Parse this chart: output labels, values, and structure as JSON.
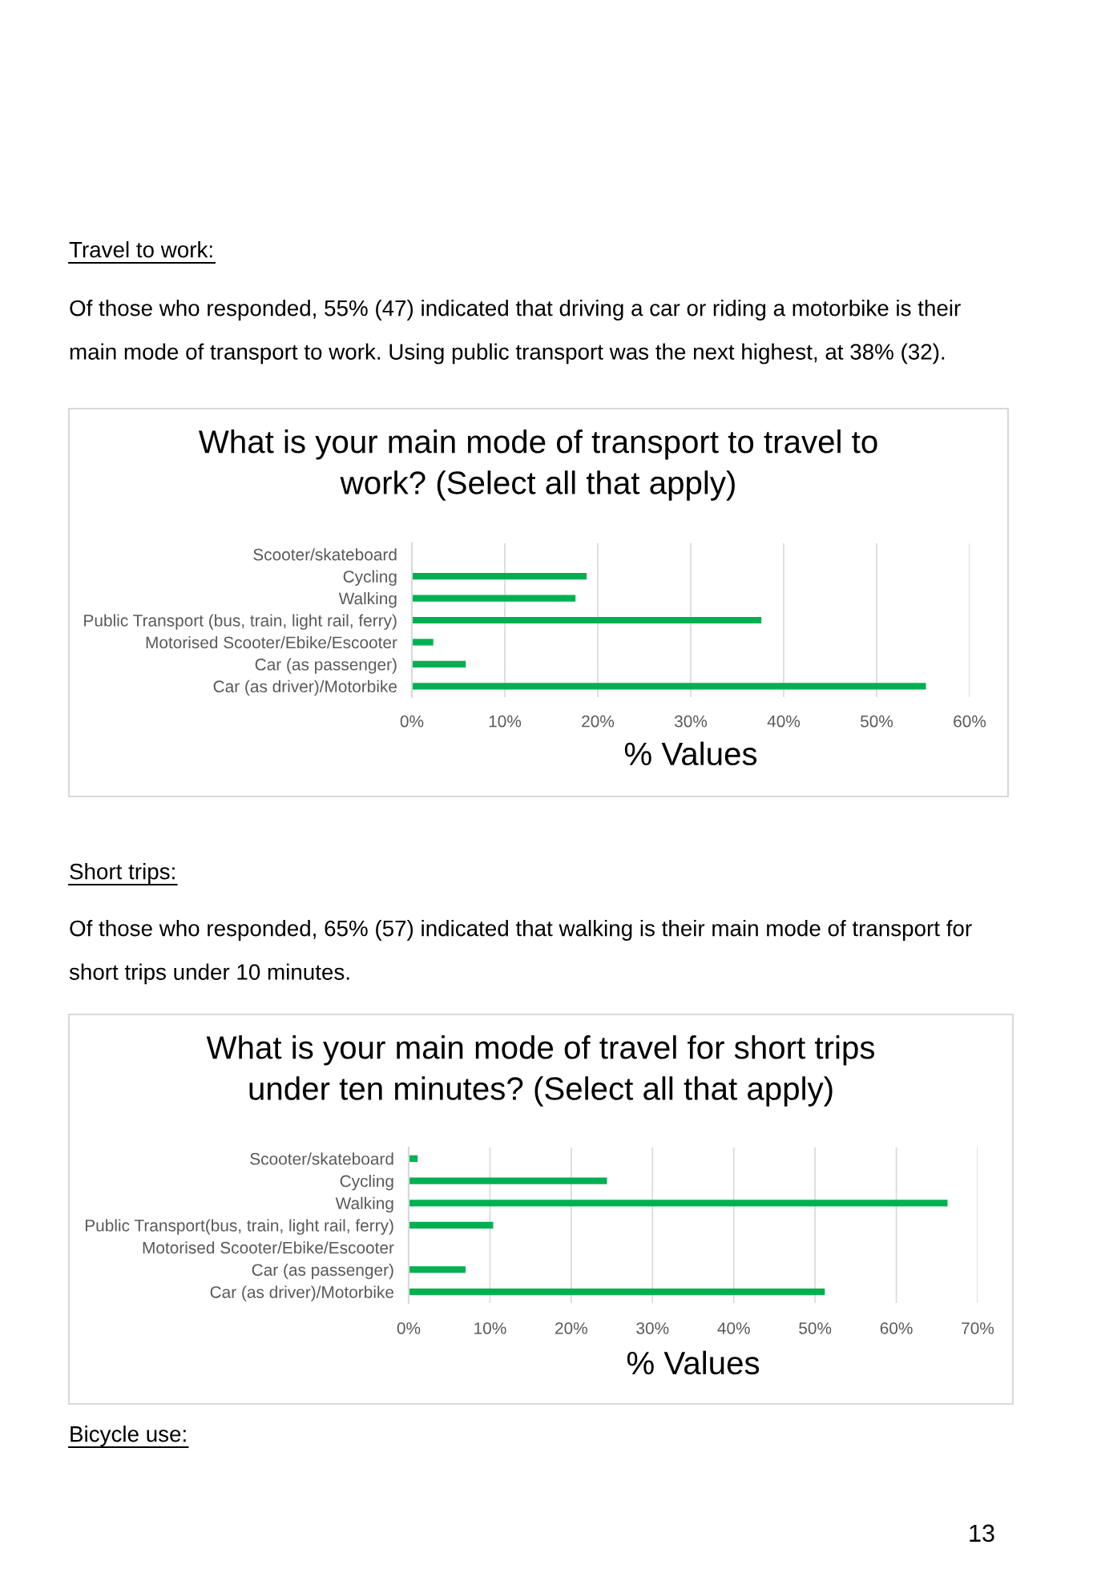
{
  "chart_data": [
    {
      "type": "bar",
      "orientation": "horizontal",
      "title": "What is your main mode of transport to travel to work? (Select all that apply)",
      "xlabel": "% Values",
      "categories": [
        "Scooter/skateboard",
        "Cycling",
        "Walking",
        "Public Transport (bus, train, light rail, ferry)",
        "Motorised Scooter/Ebike/Escooter",
        "Car (as passenger)",
        "Car (as driver)/Motorbike"
      ],
      "values": [
        0,
        18.8,
        17.6,
        37.6,
        2.3,
        5.8,
        55.3
      ],
      "color": "#00b050",
      "xlim": [
        0,
        60
      ],
      "xticks": [
        {
          "value": 0,
          "label": "0%"
        },
        {
          "value": 10,
          "label": "10%"
        },
        {
          "value": 20,
          "label": "20%"
        },
        {
          "value": 30,
          "label": "30%"
        },
        {
          "value": 40,
          "label": "40%"
        },
        {
          "value": 50,
          "label": "50%"
        },
        {
          "value": 60,
          "label": "60%"
        }
      ],
      "grid": "x",
      "annotations": [
        "Travel to work:",
        "Of those who responded, 55% (47) indicated that driving a car or riding a motorbike is their main mode of transport to work. Using public transport was the next highest, at 38% (32)."
      ]
    },
    {
      "type": "bar",
      "orientation": "horizontal",
      "title": "What is your main mode of travel for short trips under ten minutes? (Select all that apply)",
      "xlabel": "% Values",
      "categories": [
        "Scooter/skateboard",
        "Cycling",
        "Walking",
        "Public Transport(bus, train, light rail, ferry)",
        "Motorised Scooter/Ebike/Escooter",
        "Car (as passenger)",
        "Car (as driver)/Motorbike"
      ],
      "values": [
        1.1,
        24.4,
        66.3,
        10.4,
        0,
        7.0,
        51.2
      ],
      "color": "#00b050",
      "xlim": [
        0,
        70
      ],
      "xticks": [
        {
          "value": 0,
          "label": "0%"
        },
        {
          "value": 10,
          "label": "10%"
        },
        {
          "value": 20,
          "label": "20%"
        },
        {
          "value": 30,
          "label": "30%"
        },
        {
          "value": 40,
          "label": "40%"
        },
        {
          "value": 50,
          "label": "50%"
        },
        {
          "value": 60,
          "label": "60%"
        },
        {
          "value": 70,
          "label": "70%"
        }
      ],
      "grid": "x",
      "annotations": [
        "Short trips:",
        "Of those who responded, 65% (57) indicated that walking is their main mode of transport for short trips under 10 minutes.",
        "Bicycle use:",
        "13"
      ]
    }
  ]
}
